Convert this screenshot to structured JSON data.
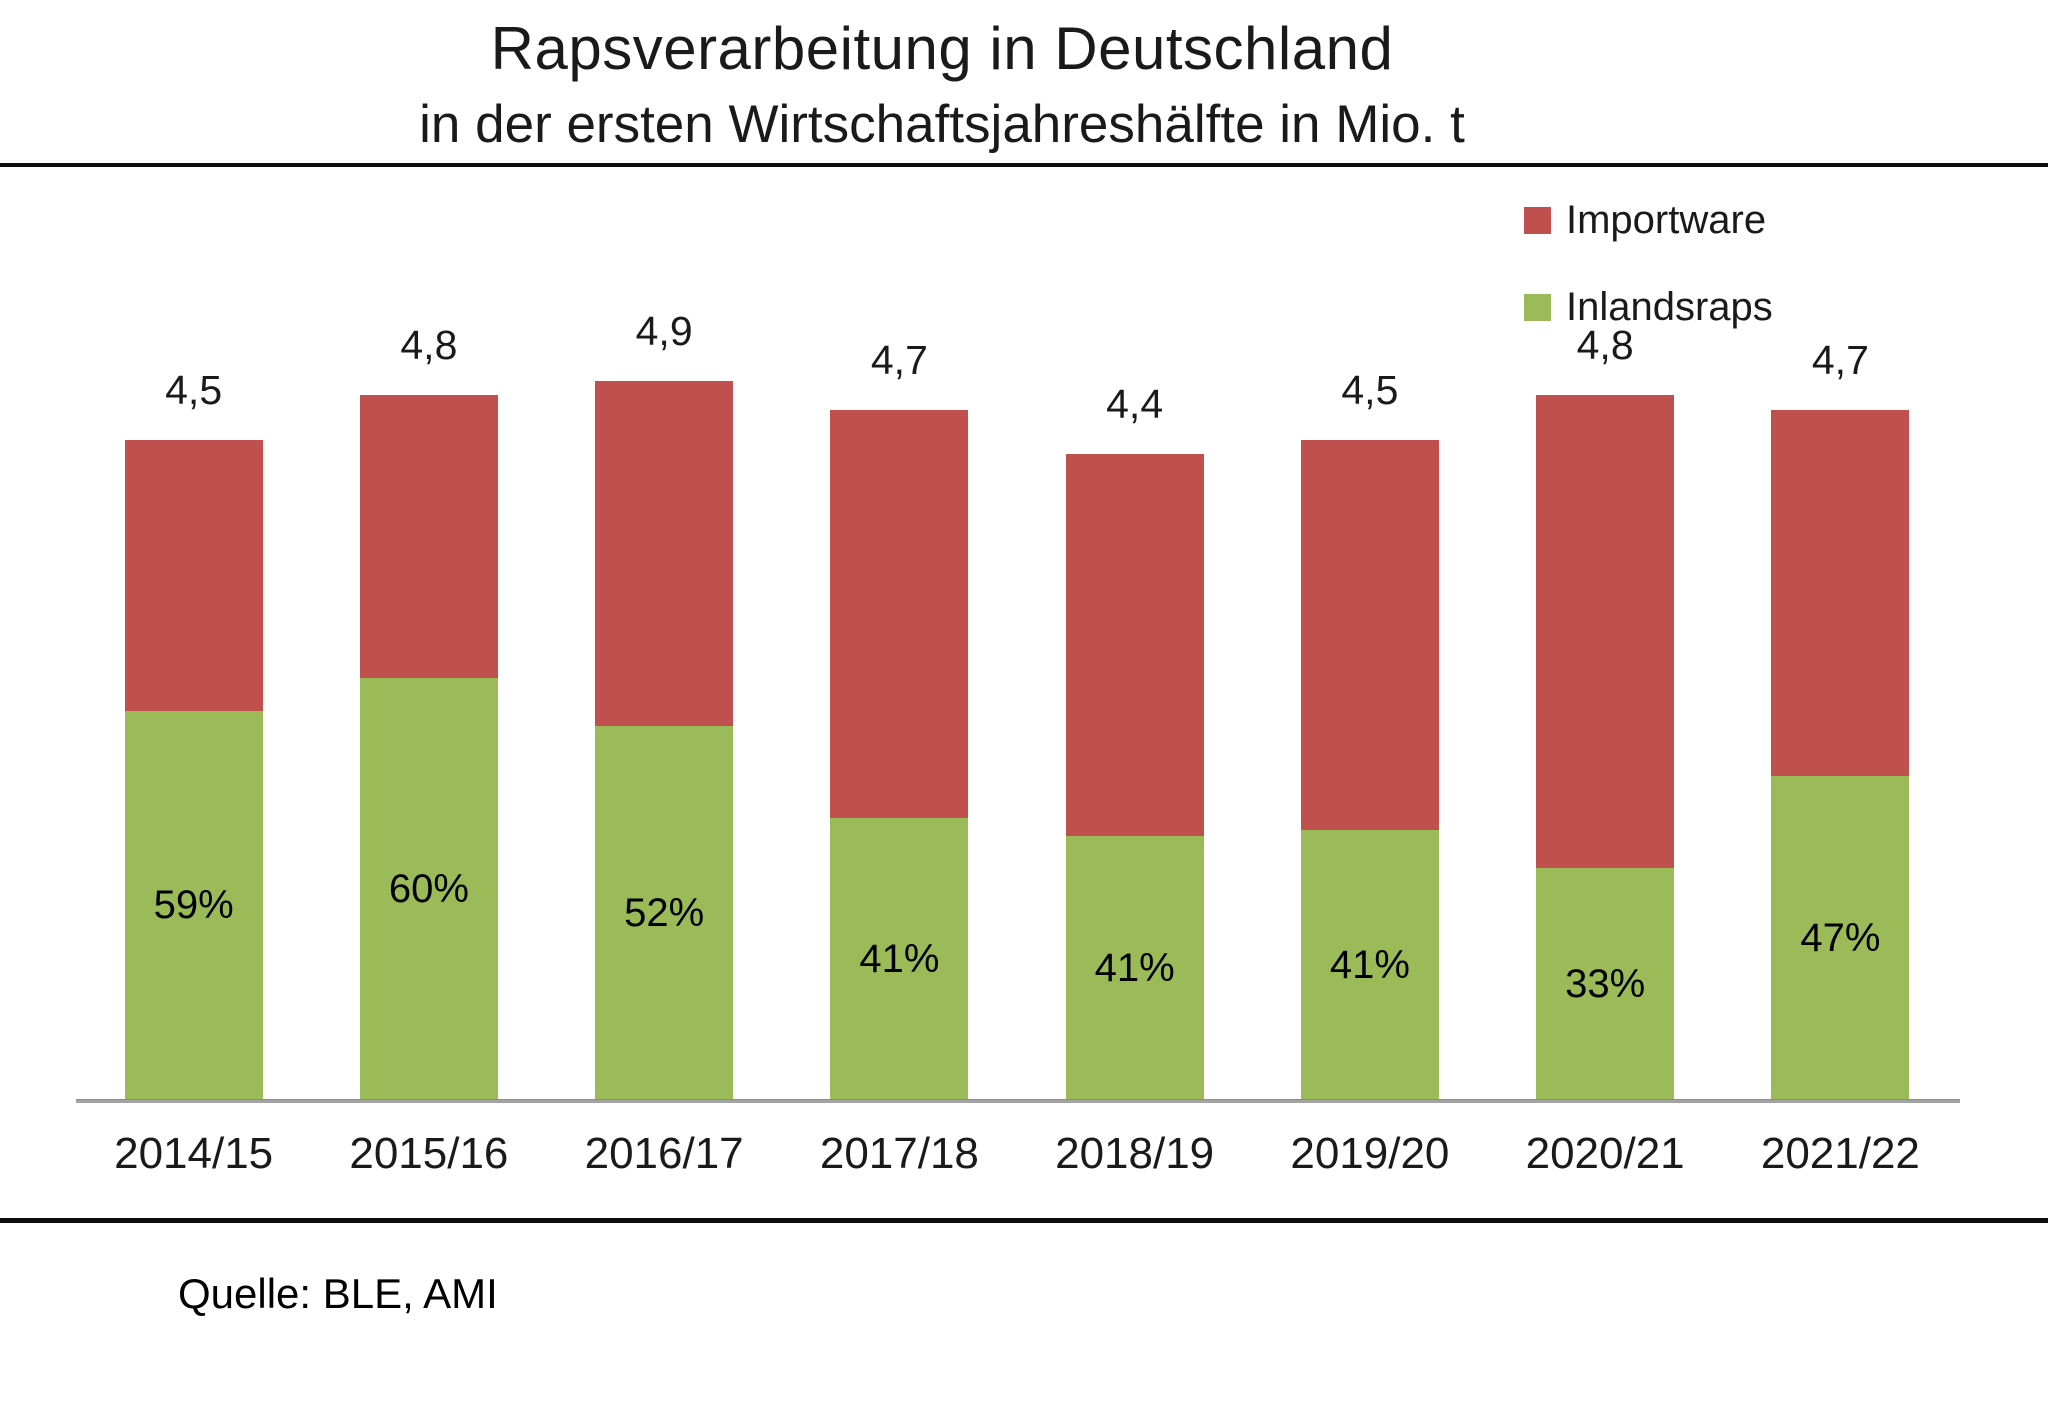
{
  "page": {
    "background": "#ffffff",
    "rule_color": "#0d0d0d",
    "axis_line_color": "#a3a3a3",
    "text_color": "#1a1a1a"
  },
  "chart_data": {
    "type": "bar",
    "stacked": true,
    "title": "Rapsverarbeitung in Deutschland",
    "subtitle": "in der ersten Wirtschaftsjahreshälfte in Mio. t",
    "unit": "Mio. t",
    "grid": false,
    "y_axis_visible": false,
    "ylim": [
      0,
      5.5
    ],
    "legend_position": "top-right",
    "categories": [
      "2014/15",
      "2015/16",
      "2016/17",
      "2017/18",
      "2018/19",
      "2019/20",
      "2020/21",
      "2021/22"
    ],
    "series": [
      {
        "name": "Importware",
        "color": "#C0504D",
        "values": [
          1.85,
          1.92,
          2.35,
          2.77,
          2.6,
          2.66,
          3.22,
          2.49
        ]
      },
      {
        "name": "Inlandsraps",
        "color": "#9BBB59",
        "values": [
          2.66,
          2.88,
          2.55,
          1.93,
          1.8,
          1.85,
          1.58,
          2.21
        ]
      }
    ],
    "totals": [
      4.5,
      4.8,
      4.9,
      4.7,
      4.4,
      4.5,
      4.8,
      4.7
    ],
    "total_labels": [
      "4,5",
      "4,8",
      "4,9",
      "4,7",
      "4,4",
      "4,5",
      "4,8",
      "4,7"
    ],
    "inland_share_pct": [
      59,
      60,
      52,
      41,
      41,
      41,
      33,
      47
    ],
    "inland_share_labels": [
      "59%",
      "60%",
      "52%",
      "41%",
      "41%",
      "41%",
      "33%",
      "47%"
    ],
    "source": "Quelle: BLE, AMI"
  }
}
